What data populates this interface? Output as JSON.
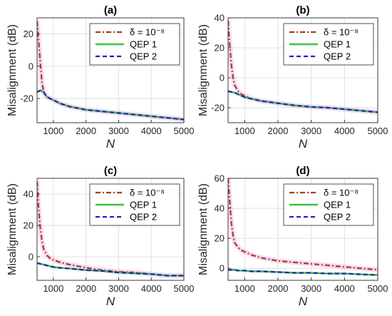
{
  "colors": {
    "delta": "#a0401e",
    "qep1": "#3cc43c",
    "qep2": "#2020c8",
    "band": "#f5b8e8",
    "grid": "#d9d9d9"
  },
  "legend": [
    "δ = 10⁻⁸",
    "QEP 1",
    "QEP 2"
  ],
  "chart_data": [
    {
      "type": "line",
      "title": "(a)",
      "xlabel": "N",
      "ylabel": "Misalignment (dB)",
      "xlim": [
        500,
        5000
      ],
      "ylim": [
        -35,
        30
      ],
      "xticks": [
        1000,
        2000,
        3000,
        4000,
        5000
      ],
      "yticks": [
        -20,
        0,
        20
      ],
      "grid": true,
      "legend_position": "top-right",
      "series": [
        {
          "name": "δ = 10⁻⁸",
          "x": [
            500,
            550,
            600,
            650,
            700,
            800,
            900,
            1000,
            1200,
            1500,
            2000,
            2500,
            3000,
            3500,
            4000,
            4500,
            5000
          ],
          "y": [
            28,
            15,
            2,
            -10,
            -16,
            -19,
            -20,
            -21,
            -23,
            -25,
            -27,
            -28,
            -29,
            -30,
            -31,
            -32,
            -33
          ]
        },
        {
          "name": "QEP 1",
          "x": [
            500,
            600,
            700,
            800,
            900,
            1000,
            1200,
            1500,
            2000,
            2500,
            3000,
            3500,
            4000,
            4500,
            5000
          ],
          "y": [
            -16,
            -15,
            -16,
            -19,
            -20,
            -21,
            -23,
            -25,
            -27,
            -28,
            -29,
            -30,
            -31,
            -32,
            -33
          ]
        },
        {
          "name": "QEP 2",
          "x": [
            500,
            600,
            700,
            800,
            900,
            1000,
            1200,
            1500,
            2000,
            2500,
            3000,
            3500,
            4000,
            4500,
            5000
          ],
          "y": [
            -16,
            -15,
            -16,
            -19,
            -20,
            -21,
            -23,
            -25,
            -27,
            -28,
            -29,
            -30,
            -31,
            -32,
            -33
          ]
        }
      ]
    },
    {
      "type": "line",
      "title": "(b)",
      "xlabel": "N",
      "ylabel": "Misalignment (dB)",
      "xlim": [
        500,
        5000
      ],
      "ylim": [
        -30,
        40
      ],
      "xticks": [
        1000,
        2000,
        3000,
        4000,
        5000
      ],
      "yticks": [
        -20,
        0,
        20,
        40
      ],
      "grid": true,
      "legend_position": "top-right",
      "series": [
        {
          "name": "δ = 10⁻⁸",
          "x": [
            500,
            550,
            600,
            650,
            700,
            800,
            900,
            1000,
            1200,
            1500,
            2000,
            2500,
            3000,
            3500,
            4000,
            4500,
            5000
          ],
          "y": [
            38,
            22,
            8,
            0,
            -5,
            -9,
            -11,
            -12,
            -14,
            -15.5,
            -17,
            -18.5,
            -19.5,
            -20,
            -21,
            -22,
            -23
          ]
        },
        {
          "name": "QEP 1",
          "x": [
            500,
            600,
            700,
            800,
            900,
            1000,
            1200,
            1500,
            2000,
            2500,
            3000,
            3500,
            4000,
            4500,
            5000
          ],
          "y": [
            -9,
            -9.5,
            -10,
            -11,
            -12,
            -13,
            -14,
            -15.5,
            -17,
            -18.5,
            -19.5,
            -20,
            -21,
            -22,
            -23
          ]
        },
        {
          "name": "QEP 2",
          "x": [
            500,
            600,
            700,
            800,
            900,
            1000,
            1200,
            1500,
            2000,
            2500,
            3000,
            3500,
            4000,
            4500,
            5000
          ],
          "y": [
            -9,
            -9.5,
            -10,
            -11,
            -12,
            -13,
            -14,
            -15.5,
            -17,
            -18.5,
            -19.5,
            -20,
            -21,
            -22,
            -23
          ]
        }
      ]
    },
    {
      "type": "line",
      "title": "(c)",
      "xlabel": "N",
      "ylabel": "Misalignment (dB)",
      "xlim": [
        500,
        5000
      ],
      "ylim": [
        -15,
        50
      ],
      "xticks": [
        1000,
        2000,
        3000,
        4000,
        5000
      ],
      "yticks": [
        0,
        20,
        40
      ],
      "grid": true,
      "legend_position": "top-right",
      "series": [
        {
          "name": "δ = 10⁻⁸",
          "x": [
            500,
            550,
            600,
            650,
            700,
            800,
            900,
            1000,
            1200,
            1500,
            2000,
            2500,
            3000,
            3500,
            4000,
            4500,
            5000
          ],
          "y": [
            48,
            30,
            18,
            10,
            5,
            1,
            -1,
            -2,
            -3.5,
            -5,
            -7,
            -8.5,
            -9.5,
            -10,
            -11,
            -12,
            -12
          ]
        },
        {
          "name": "QEP 1",
          "x": [
            500,
            600,
            700,
            800,
            900,
            1000,
            1200,
            1500,
            2000,
            2500,
            3000,
            3500,
            4000,
            4500,
            5000
          ],
          "y": [
            -4,
            -4.5,
            -5,
            -5.5,
            -6,
            -6.5,
            -7,
            -7.5,
            -8.5,
            -9,
            -10,
            -10.5,
            -11,
            -12,
            -12
          ]
        },
        {
          "name": "QEP 2",
          "x": [
            500,
            600,
            700,
            800,
            900,
            1000,
            1200,
            1500,
            2000,
            2500,
            3000,
            3500,
            4000,
            4500,
            5000
          ],
          "y": [
            -4,
            -4.5,
            -5,
            -5.5,
            -6,
            -6.5,
            -7,
            -7.5,
            -8.5,
            -9,
            -10,
            -10.5,
            -11,
            -12,
            -12
          ]
        }
      ]
    },
    {
      "type": "line",
      "title": "(d)",
      "xlabel": "N",
      "ylabel": "Misalignment (dB)",
      "xlim": [
        500,
        5000
      ],
      "ylim": [
        -8,
        60
      ],
      "xticks": [
        1000,
        2000,
        3000,
        4000,
        5000
      ],
      "yticks": [
        0,
        20,
        40,
        60
      ],
      "grid": true,
      "legend_position": "top-right",
      "series": [
        {
          "name": "δ = 10⁻⁸",
          "x": [
            500,
            550,
            600,
            650,
            700,
            800,
            900,
            1000,
            1200,
            1500,
            2000,
            2500,
            3000,
            3500,
            4000,
            4500,
            5000
          ],
          "y": [
            60,
            45,
            30,
            22,
            17,
            14,
            12,
            11,
            9,
            7,
            5,
            4,
            3,
            2,
            1,
            0,
            -1
          ]
        },
        {
          "name": "QEP 1",
          "x": [
            500,
            600,
            700,
            800,
            900,
            1000,
            1200,
            1500,
            2000,
            2500,
            3000,
            3500,
            4000,
            4500,
            5000
          ],
          "y": [
            -1,
            -1,
            -1,
            -1.5,
            -1.5,
            -1.5,
            -2,
            -2,
            -2.5,
            -3,
            -3,
            -3.5,
            -3.5,
            -4,
            -4.5
          ]
        },
        {
          "name": "QEP 2",
          "x": [
            500,
            600,
            700,
            800,
            900,
            1000,
            1200,
            1500,
            2000,
            2500,
            3000,
            3500,
            4000,
            4500,
            5000
          ],
          "y": [
            -1,
            -1,
            -1,
            -1.5,
            -1.5,
            -1.5,
            -2,
            -2,
            -2.5,
            -3,
            -3,
            -3.5,
            -3.5,
            -4,
            -4.5
          ]
        }
      ]
    }
  ]
}
